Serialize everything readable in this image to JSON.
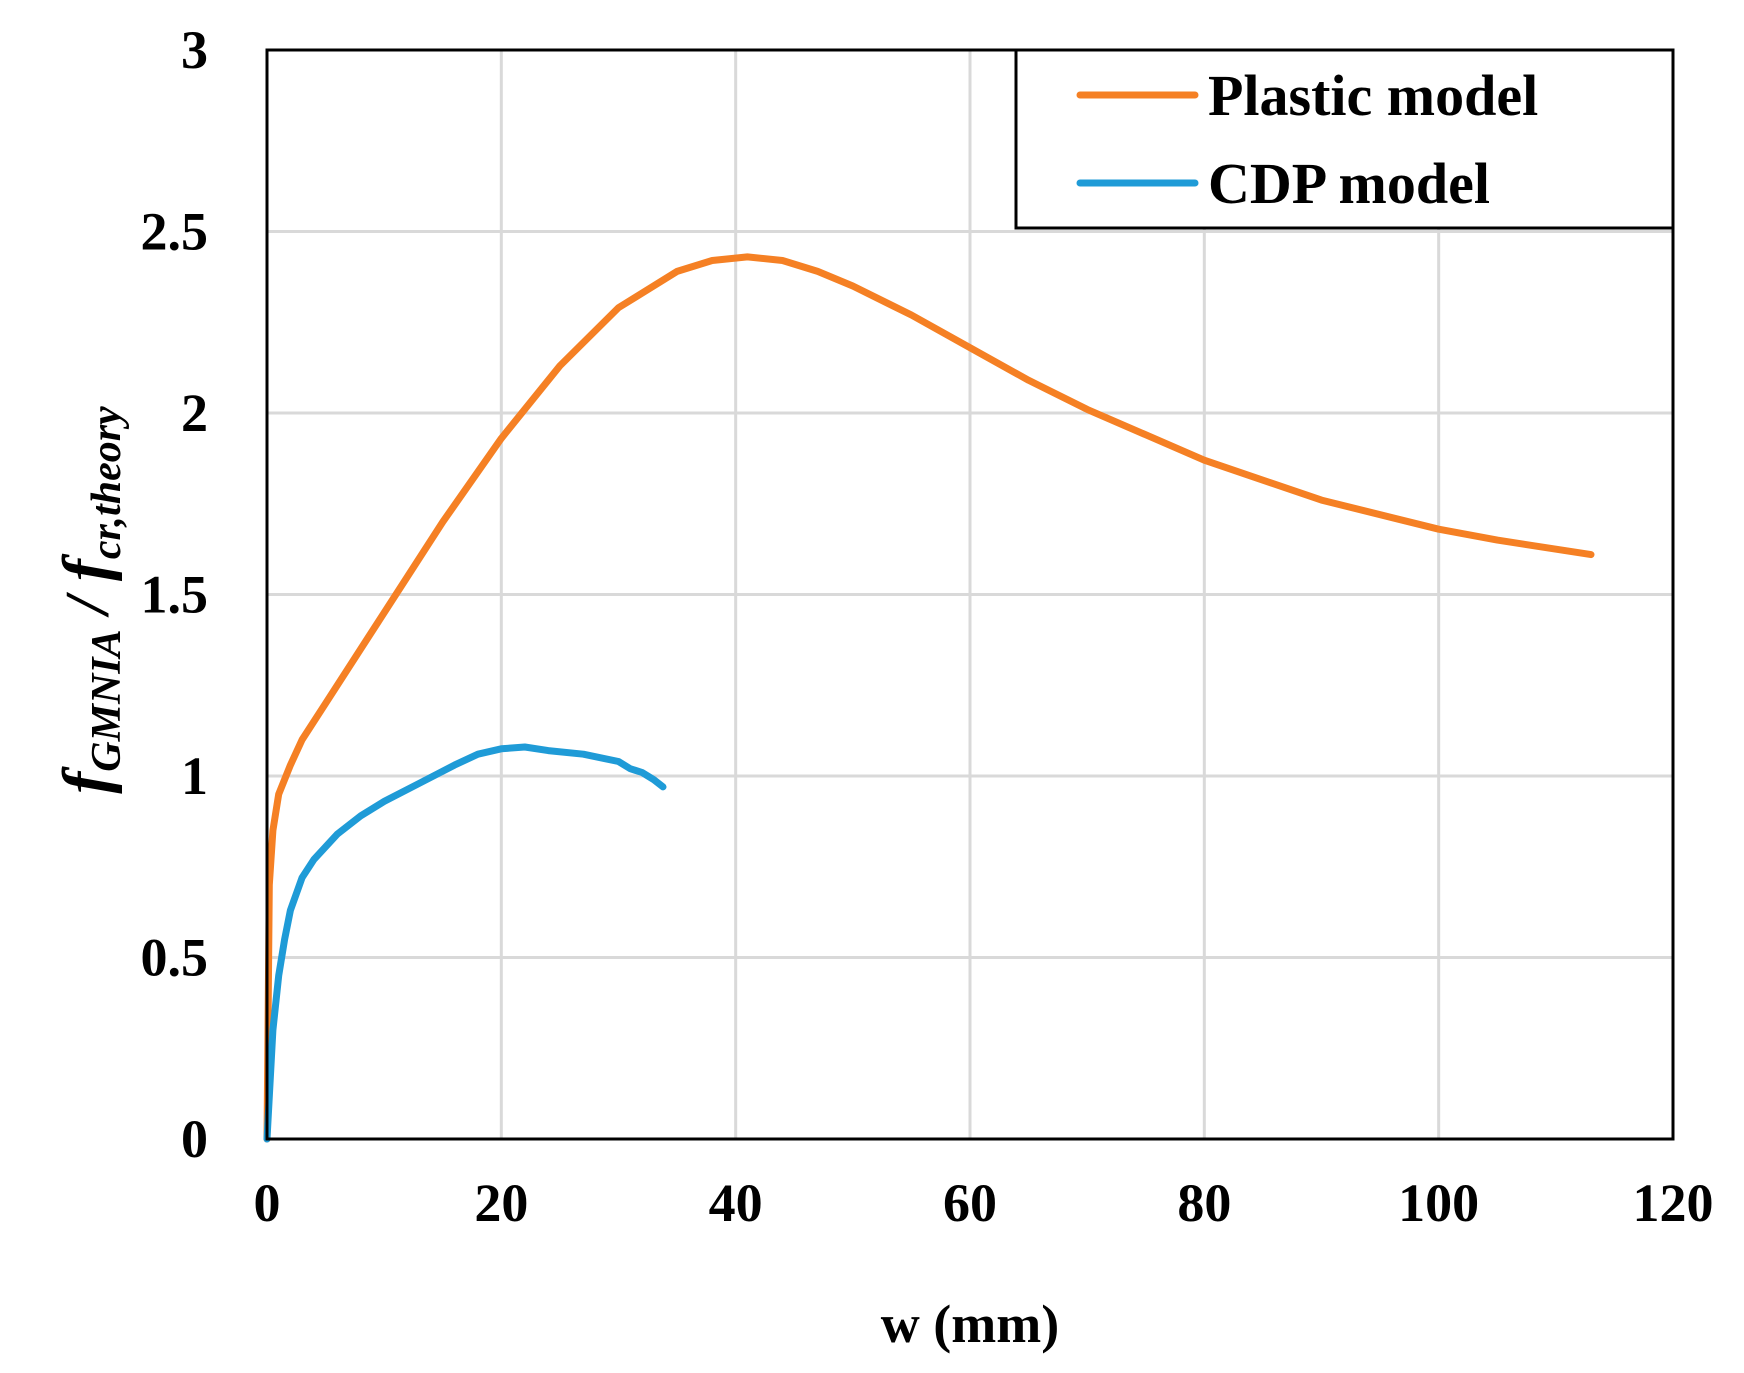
{
  "chart_data": {
    "type": "line",
    "title": "",
    "xlabel": "w (mm)",
    "ylabel": {
      "main_1": "f",
      "sub_1": "GMNIA",
      "separator": " / ",
      "main_2": "f",
      "sub_2": "cr,theory"
    },
    "xlim": [
      0,
      120
    ],
    "ylim": [
      0,
      3
    ],
    "xticks": [
      0,
      20,
      40,
      60,
      80,
      100,
      120
    ],
    "yticks": [
      0,
      0.5,
      1,
      1.5,
      2,
      2.5,
      3
    ],
    "xtick_labels": [
      "0",
      "20",
      "40",
      "60",
      "80",
      "100",
      "120"
    ],
    "ytick_labels": [
      "0",
      "0.5",
      "1",
      "1.5",
      "2",
      "2.5",
      "3"
    ],
    "grid": true,
    "legend_position": "top-right",
    "series": [
      {
        "name": "Plastic model",
        "color": "#F58024",
        "x": [
          0,
          0.2,
          0.5,
          1,
          2,
          3,
          5,
          7,
          10,
          15,
          20,
          25,
          30,
          35,
          38,
          41,
          44,
          47,
          50,
          55,
          60,
          65,
          70,
          80,
          90,
          100,
          105,
          113
        ],
        "y": [
          0,
          0.7,
          0.85,
          0.95,
          1.03,
          1.1,
          1.2,
          1.3,
          1.45,
          1.7,
          1.93,
          2.13,
          2.29,
          2.39,
          2.42,
          2.43,
          2.42,
          2.39,
          2.35,
          2.27,
          2.18,
          2.09,
          2.01,
          1.87,
          1.76,
          1.68,
          1.65,
          1.61
        ]
      },
      {
        "name": "CDP model",
        "color": "#1F9BD7",
        "x": [
          0,
          0.5,
          1,
          1.5,
          2,
          3,
          4,
          6,
          8,
          10,
          13,
          16,
          18,
          20,
          22,
          24,
          27,
          30,
          31,
          32,
          33,
          33.8
        ],
        "y": [
          0,
          0.3,
          0.45,
          0.55,
          0.63,
          0.72,
          0.77,
          0.84,
          0.89,
          0.93,
          0.98,
          1.03,
          1.06,
          1.075,
          1.08,
          1.07,
          1.06,
          1.04,
          1.02,
          1.01,
          0.99,
          0.97
        ]
      }
    ]
  }
}
